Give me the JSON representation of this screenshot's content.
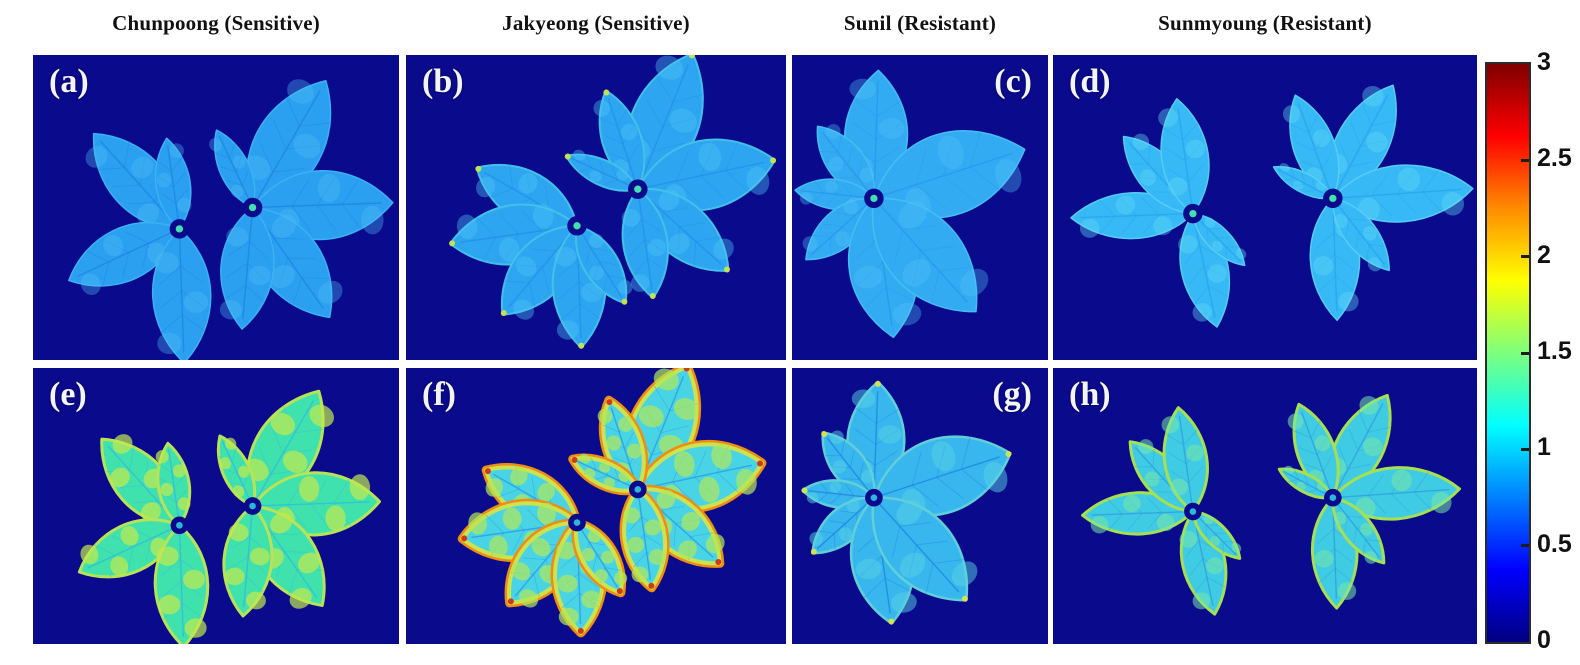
{
  "figure": {
    "title_row": [
      "Chunpoong (Sensitive)",
      "Jakyeong (Sensitive)",
      "Sunil (Resistant)",
      "Sunmyoung (Resistant)"
    ]
  },
  "panels": [
    {
      "id": "a",
      "label": "(a)",
      "cultivar": "Chunpoong (Sensitive)",
      "label_position": "top-left",
      "layout": "pair_a",
      "palette": {
        "background": "#0a0a8c",
        "base": "#2b9ff0",
        "edge": "#3db1f2",
        "edge_width": 1.5,
        "patch": "#4ec0f6",
        "patch_opacity": 0.35,
        "patch_count": 3,
        "vein": "#1f86e2",
        "center_dot": "#43dfae"
      }
    },
    {
      "id": "b",
      "label": "(b)",
      "cultivar": "Jakyeong (Sensitive)",
      "label_position": "top-left",
      "layout": "rosette_b",
      "palette": {
        "background": "#0a0a8c",
        "base": "#2ea5f1",
        "edge": "#43c0e8",
        "edge_width": 2,
        "patch": "#4cc4f4",
        "patch_opacity": 0.4,
        "patch_count": 3,
        "vein": "#2490e8",
        "tip": "#c9e44e",
        "center_dot": "#43dfae"
      }
    },
    {
      "id": "c",
      "label": "(c)",
      "cultivar": "Sunil (Resistant)",
      "label_position": "top-right",
      "layout": "single_c",
      "palette": {
        "background": "#0a0a8c",
        "base": "#33abf3",
        "edge": "#45bdf4",
        "edge_width": 1.5,
        "patch": "#50c3f6",
        "patch_opacity": 0.35,
        "patch_count": 3,
        "vein": "#2a97ec",
        "center_dot": "#43dfae"
      }
    },
    {
      "id": "d",
      "label": "(d)",
      "cultivar": "Sunmyoung (Resistant)",
      "label_position": "top-left",
      "layout": "twin_d",
      "palette": {
        "background": "#0a0a8c",
        "base": "#36b9f4",
        "edge": "#55cdf6",
        "edge_width": 1.5,
        "patch": "#62d6f8",
        "patch_opacity": 0.4,
        "patch_count": 3,
        "vein": "#29a5ef",
        "center_dot": "#43dfae"
      }
    },
    {
      "id": "e",
      "label": "(e)",
      "cultivar": "Chunpoong (Sensitive)",
      "label_position": "top-left",
      "layout": "pair_a",
      "palette": {
        "background": "#0a0a8c",
        "base": "#3fe2ac",
        "edge": "#b9e356",
        "edge_width": 3,
        "patch": "#c2e94e",
        "patch_opacity": 0.7,
        "patch_count": 4,
        "vein": "#35b9e0",
        "center_dot": "#2db6d8"
      }
    },
    {
      "id": "f",
      "label": "(f)",
      "cultivar": "Jakyeong (Sensitive)",
      "label_position": "top-left",
      "layout": "rosette_b",
      "palette": {
        "background": "#0a0a8c",
        "base": "#49d4e6",
        "edge": "#cde24e",
        "edge_width": 4,
        "edge2": "#ef8c12",
        "edge2_width": 9,
        "patch": "#b2e858",
        "patch_opacity": 0.7,
        "patch_count": 5,
        "vein": "#2b9ce0",
        "tip": "#d13014",
        "center_dot": "#2db6d8"
      }
    },
    {
      "id": "g",
      "label": "(g)",
      "cultivar": "Sunil (Resistant)",
      "label_position": "top-right",
      "layout": "single_c",
      "palette": {
        "background": "#0a0a8c",
        "base": "#38b7ef",
        "edge": "#62cfd8",
        "edge_width": 2.5,
        "patch": "#55d2e2",
        "patch_opacity": 0.5,
        "patch_count": 3,
        "vein": "#1f86e0",
        "tip": "#d8e44a",
        "center_dot": "#2db6d8"
      }
    },
    {
      "id": "h",
      "label": "(h)",
      "cultivar": "Sunmyoung (Resistant)",
      "label_position": "top-left",
      "layout": "twin_d",
      "palette": {
        "background": "#0a0a8c",
        "base": "#3fcbe4",
        "edge": "#a6df52",
        "edge_width": 3,
        "patch": "#79e8a6",
        "patch_opacity": 0.55,
        "patch_count": 3,
        "vein": "#2fa0dd",
        "center_dot": "#2db6d8"
      }
    }
  ],
  "colorbar": {
    "min": 0,
    "max": 3,
    "tick_labels": [
      "3",
      "2.5",
      "2",
      "1.5",
      "1",
      "0.5",
      "0"
    ],
    "gradient_top_to_bottom": [
      "#7f0000",
      "#ff0000",
      "#ff8c00",
      "#ffff00",
      "#7dff7d",
      "#00ffff",
      "#0080ff",
      "#0000ff",
      "#000080"
    ]
  }
}
